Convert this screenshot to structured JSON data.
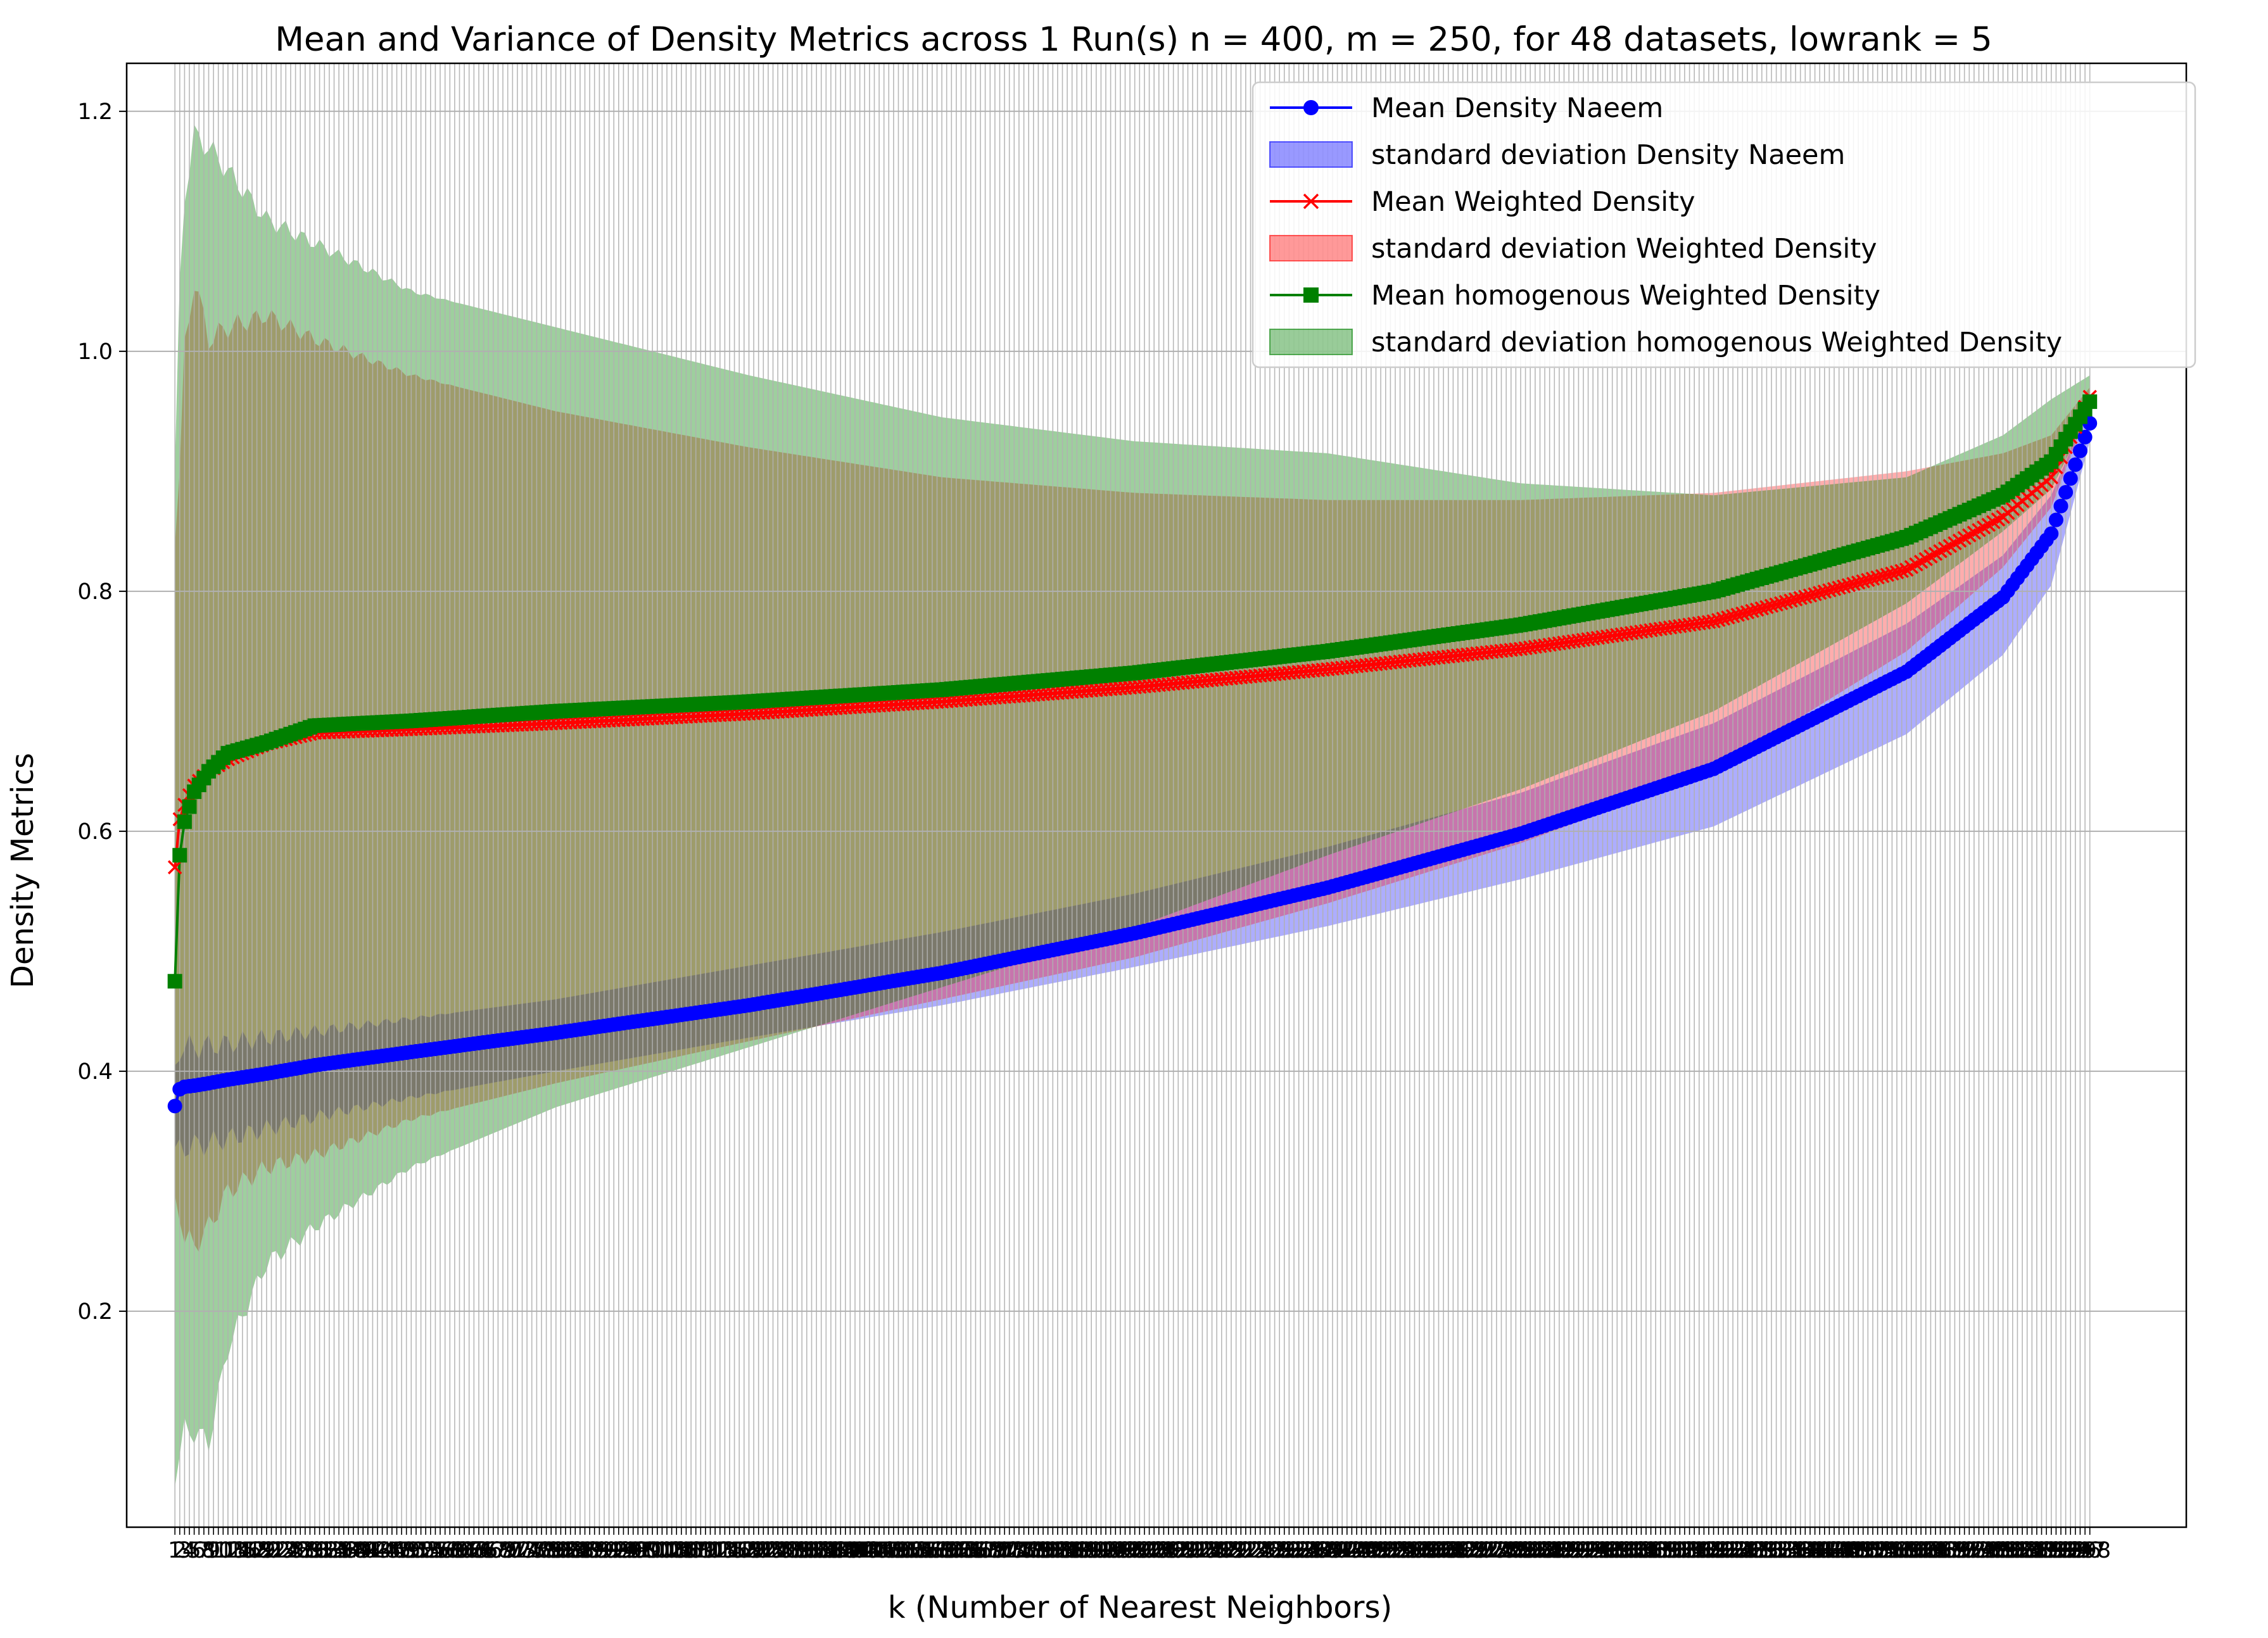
{
  "chart_data": {
    "type": "line",
    "title": "Mean and Variance of Density Metrics across 1 Run(s) n  = 400, m  = 250, for 48 datasets, lowrank = 5",
    "xlabel": "k (Number of Nearest Neighbors)",
    "ylabel": "Density Metrics",
    "xlim": [
      -9,
      418
    ],
    "ylim": [
      0.02,
      1.24
    ],
    "yticks": [
      0.2,
      0.4,
      0.6,
      0.8,
      1.0,
      1.2
    ],
    "x_first_tick_labels": [
      "1",
      "2",
      "3",
      "4",
      "5",
      "6"
    ],
    "x_last_tick_label": "398",
    "grid": true,
    "legend_position": "top-right",
    "x_key": [
      1,
      2,
      3,
      5,
      8,
      12,
      20,
      30,
      50,
      80,
      120,
      160,
      200,
      240,
      280,
      320,
      360,
      380,
      390,
      398
    ],
    "series": [
      {
        "name": "Mean Density Naeem",
        "color": "#0000ff",
        "marker": "circle",
        "values": [
          0.371,
          0.385,
          0.387,
          0.388,
          0.39,
          0.393,
          0.398,
          0.405,
          0.416,
          0.432,
          0.455,
          0.482,
          0.515,
          0.553,
          0.598,
          0.652,
          0.733,
          0.795,
          0.848,
          0.94
        ]
      },
      {
        "name": "standard deviation Density Naeem",
        "color": "#0000ff",
        "band": "std",
        "lower": [
          0.33,
          0.335,
          0.337,
          0.338,
          0.34,
          0.344,
          0.352,
          0.362,
          0.378,
          0.4,
          0.428,
          0.455,
          0.487,
          0.521,
          0.56,
          0.604,
          0.681,
          0.747,
          0.805,
          0.925
        ],
        "upper": [
          0.4,
          0.42,
          0.42,
          0.42,
          0.421,
          0.423,
          0.428,
          0.433,
          0.444,
          0.46,
          0.488,
          0.516,
          0.548,
          0.587,
          0.632,
          0.69,
          0.773,
          0.83,
          0.88,
          0.955
        ]
      },
      {
        "name": "Mean Weighted Density",
        "color": "#ff0000",
        "marker": "x",
        "values": [
          0.57,
          0.61,
          0.622,
          0.638,
          0.65,
          0.66,
          0.673,
          0.682,
          0.685,
          0.69,
          0.698,
          0.708,
          0.72,
          0.735,
          0.752,
          0.775,
          0.818,
          0.862,
          0.895,
          0.962
        ]
      },
      {
        "name": "standard deviation Weighted Density",
        "color": "#ff0000",
        "band": "std",
        "lower": [
          0.29,
          0.285,
          0.26,
          0.255,
          0.27,
          0.3,
          0.32,
          0.33,
          0.36,
          0.39,
          0.425,
          0.46,
          0.495,
          0.54,
          0.59,
          0.65,
          0.75,
          0.82,
          0.87,
          0.955
        ],
        "upper": [
          0.85,
          0.9,
          1.0,
          1.06,
          1.01,
          1.02,
          1.03,
          1.01,
          0.98,
          0.95,
          0.92,
          0.895,
          0.882,
          0.876,
          0.876,
          0.882,
          0.9,
          0.915,
          0.93,
          0.97
        ]
      },
      {
        "name": "Mean homogenous Weighted Density",
        "color": "#008000",
        "marker": "square",
        "values": [
          0.475,
          0.58,
          0.608,
          0.633,
          0.65,
          0.665,
          0.674,
          0.688,
          0.692,
          0.7,
          0.708,
          0.718,
          0.732,
          0.75,
          0.772,
          0.8,
          0.845,
          0.88,
          0.908,
          0.958
        ]
      },
      {
        "name": "standard deviation homogenous Weighted Density",
        "color": "#008000",
        "band": "std",
        "lower": [
          0.065,
          0.08,
          0.1,
          0.1,
          0.09,
          0.17,
          0.24,
          0.27,
          0.32,
          0.37,
          0.42,
          0.47,
          0.52,
          0.58,
          0.635,
          0.7,
          0.79,
          0.85,
          0.885,
          0.95
        ],
        "upper": [
          0.9,
          1.05,
          1.13,
          1.18,
          1.17,
          1.15,
          1.11,
          1.09,
          1.05,
          1.02,
          0.98,
          0.945,
          0.925,
          0.915,
          0.89,
          0.88,
          0.895,
          0.93,
          0.96,
          0.98
        ]
      }
    ]
  }
}
